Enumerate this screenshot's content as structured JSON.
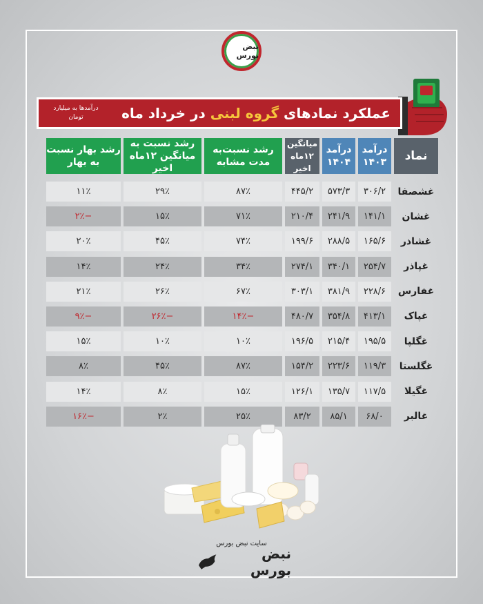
{
  "logo": {
    "text": "نبض بورس"
  },
  "banner": {
    "title_before": "عملکرد نمادهای ",
    "title_highlight": "گروه لبنی",
    "title_after": " در خرداد ماه",
    "note": "درآمدها به میلیارد تومان"
  },
  "headers": {
    "symbol": "نماد",
    "rev1403": "درآمد ۱۴۰۳",
    "rev1404": "درآمد ۱۴۰۴",
    "avg12": "میانگین ۱۲ماه اخیر",
    "growth_same": "رشد نسبت‌به مدت مشابه",
    "growth_avg": "رشد نسبت به میانگین ۱۲ماه اخیر",
    "growth_spring": "رشد بهار نسبت به بهار"
  },
  "rows": [
    {
      "symbol": "غشصفا",
      "rev1403": "۳۰۶/۲",
      "rev1404": "۵۷۳/۳",
      "avg12": "۴۴۵/۲",
      "growth_same": "۸۷٪",
      "growth_avg": "۲۹٪",
      "growth_spring": "۱۱٪"
    },
    {
      "symbol": "غشان",
      "rev1403": "۱۴۱/۱",
      "rev1404": "۲۴۱/۹",
      "avg12": "۲۱۰/۴",
      "growth_same": "۷۱٪",
      "growth_avg": "۱۵٪",
      "growth_spring": "−۲٪"
    },
    {
      "symbol": "غشاذر",
      "rev1403": "۱۶۵/۶",
      "rev1404": "۲۸۸/۵",
      "avg12": "۱۹۹/۶",
      "growth_same": "۷۴٪",
      "growth_avg": "۴۵٪",
      "growth_spring": "۲۰٪"
    },
    {
      "symbol": "غپاذر",
      "rev1403": "۲۵۴/۷",
      "rev1404": "۳۴۰/۱",
      "avg12": "۲۷۴/۱",
      "growth_same": "۳۴٪",
      "growth_avg": "۲۴٪",
      "growth_spring": "۱۴٪"
    },
    {
      "symbol": "غفارس",
      "rev1403": "۲۲۸/۶",
      "rev1404": "۳۸۱/۹",
      "avg12": "۳۰۳/۱",
      "growth_same": "۶۷٪",
      "growth_avg": "۲۶٪",
      "growth_spring": "۲۱٪"
    },
    {
      "symbol": "غپاک",
      "rev1403": "۴۱۳/۱",
      "rev1404": "۳۵۴/۸",
      "avg12": "۴۸۰/۷",
      "growth_same": "−۱۴٪",
      "growth_avg": "−۲۶٪",
      "growth_spring": "−۹٪"
    },
    {
      "symbol": "غگلپا",
      "rev1403": "۱۹۵/۵",
      "rev1404": "۲۱۵/۴",
      "avg12": "۱۹۶/۵",
      "growth_same": "۱۰٪",
      "growth_avg": "۱۰٪",
      "growth_spring": "۱۵٪"
    },
    {
      "symbol": "غگلستا",
      "rev1403": "۱۱۹/۳",
      "rev1404": "۲۲۳/۶",
      "avg12": "۱۵۴/۲",
      "growth_same": "۸۷٪",
      "growth_avg": "۴۵٪",
      "growth_spring": "۸٪"
    },
    {
      "symbol": "غگیلا",
      "rev1403": "۱۱۷/۵",
      "rev1404": "۱۳۵/۷",
      "avg12": "۱۲۶/۱",
      "growth_same": "۱۵٪",
      "growth_avg": "۸٪",
      "growth_spring": "۱۴٪"
    },
    {
      "symbol": "غالبر",
      "rev1403": "۶۸/۰",
      "rev1404": "۸۵/۱",
      "avg12": "۸۳/۲",
      "growth_same": "۲۵٪",
      "growth_avg": "۲٪",
      "growth_spring": "−۱۶٪"
    }
  ],
  "footer": {
    "site_label": "سایت نبض بورس",
    "logo_text": "نبض بورس"
  },
  "colors": {
    "banner_red": "#b3222a",
    "highlight_yellow": "#f6c63c",
    "header_blue": "#4f86b8",
    "header_gray": "#59626b",
    "header_green": "#21a04f",
    "negative_red": "#c0262d"
  }
}
